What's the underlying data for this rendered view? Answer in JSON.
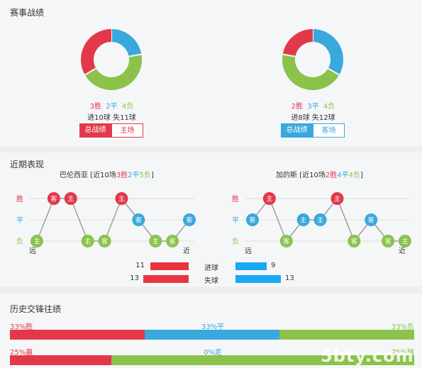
{
  "sections": {
    "season": "赛事战绩",
    "recent": "近期表现",
    "history": "历史交锋往绩"
  },
  "colors": {
    "win": "#e2394a",
    "draw": "#39a8dc",
    "loss": "#8bc34a"
  },
  "season": {
    "home": {
      "wins": "3胜",
      "draws": "2平",
      "losses": "4负",
      "goals": "进10球  失11球",
      "win_count": 3,
      "draw_count": 2,
      "loss_count": 4,
      "tab_total": "总战绩",
      "tab_venue": "主场"
    },
    "away": {
      "wins": "2胜",
      "draws": "3平",
      "losses": "4负",
      "goals": "进8球  失12球",
      "win_count": 2,
      "draw_count": 3,
      "loss_count": 4,
      "tab_total": "总战绩",
      "tab_venue": "客场"
    }
  },
  "recent": {
    "home": {
      "team": "巴伦西亚",
      "prefix": "[近10场",
      "w": "3胜",
      "d": "2平",
      "l": "5负",
      "suffix": "]",
      "results": [
        "L",
        "W",
        "W",
        "L",
        "L",
        "W",
        "D",
        "L",
        "L",
        "D"
      ],
      "venues": [
        "主",
        "客",
        "主",
        "主",
        "客",
        "主",
        "客",
        "主",
        "客",
        "客"
      ]
    },
    "away": {
      "team": "加的斯",
      "prefix": "[近10场",
      "w": "2胜",
      "d": "4平",
      "l": "4负",
      "suffix": "]",
      "results": [
        "D",
        "W",
        "L",
        "D",
        "D",
        "W",
        "L",
        "D",
        "L",
        "L"
      ],
      "venues": [
        "客",
        "主",
        "客",
        "主",
        "主",
        "主",
        "客",
        "客",
        "客",
        "主"
      ]
    },
    "axis": {
      "win": "胜",
      "draw": "平",
      "loss": "负",
      "far": "远",
      "near": "近"
    },
    "scored_label": "进球",
    "conceded_label": "失球",
    "home_scored": "11",
    "home_conceded": "13",
    "away_scored": "9",
    "away_conceded": "13",
    "home_scored_v": 11,
    "home_conceded_v": 13,
    "away_scored_v": 9,
    "away_conceded_v": 13
  },
  "history": {
    "row1": {
      "left": "33%胜",
      "mid": "33%平",
      "right": "33%负",
      "a": 33,
      "b": 33,
      "c": 33
    },
    "row2": {
      "left": "25%赢",
      "mid": "0%走",
      "right": "75%输",
      "a": 25,
      "b": 0,
      "c": 75
    }
  },
  "watermark": "5bty.com"
}
